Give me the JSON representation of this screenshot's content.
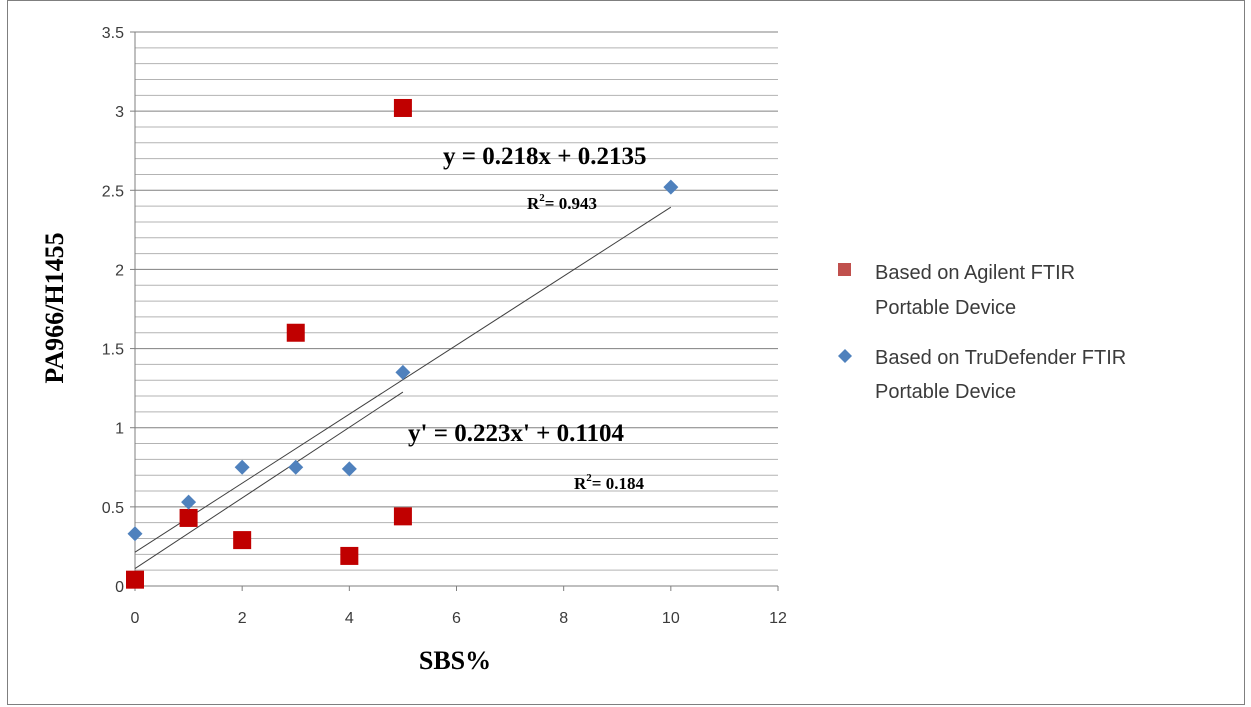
{
  "chart_data": {
    "type": "scatter",
    "xlabel": "SBS%",
    "ylabel": "PA966/H1455",
    "xlim": [
      0,
      12
    ],
    "ylim": [
      0,
      3.5
    ],
    "x_ticks": [
      0,
      2,
      4,
      6,
      8,
      10,
      12
    ],
    "y_ticks": [
      0,
      0.5,
      1,
      1.5,
      2,
      2.5,
      3,
      3.5
    ],
    "y_tick_labels": [
      "0",
      "0.5",
      "1",
      "1.5",
      "2",
      "2.5",
      "3",
      "3.5"
    ],
    "y_minor_step": 0.1,
    "grid": "horizontal",
    "legend_position": "right",
    "series": [
      {
        "name": "Based on Agilent FTIR Portable Device",
        "marker": "square",
        "color": "#c00000",
        "points": [
          {
            "x": 0,
            "y": 0.04
          },
          {
            "x": 1,
            "y": 0.43
          },
          {
            "x": 2,
            "y": 0.29
          },
          {
            "x": 3,
            "y": 1.6
          },
          {
            "x": 4,
            "y": 0.19
          },
          {
            "x": 5,
            "y": 0.44
          },
          {
            "x": 5,
            "y": 3.02
          }
        ],
        "trendline": {
          "x_start": 0,
          "x_end": 5,
          "slope": 0.223,
          "intercept": 0.1104
        },
        "equation": "y' = 0.223x' + 0.1104",
        "r2_prefix": "R",
        "r2_sup": "2",
        "r2_value": "= 0.184"
      },
      {
        "name": "Based on TruDefender FTIR Portable Device",
        "marker": "diamond",
        "color": "#4f81bd",
        "points": [
          {
            "x": 0,
            "y": 0.33
          },
          {
            "x": 1,
            "y": 0.53
          },
          {
            "x": 2,
            "y": 0.75
          },
          {
            "x": 3,
            "y": 0.75
          },
          {
            "x": 4,
            "y": 0.74
          },
          {
            "x": 5,
            "y": 1.35
          },
          {
            "x": 10,
            "y": 2.52
          }
        ],
        "trendline": {
          "x_start": 0,
          "x_end": 10,
          "slope": 0.218,
          "intercept": 0.2135
        },
        "equation": "y = 0.218x + 0.2135",
        "r2_prefix": "R",
        "r2_sup": "2",
        "r2_value": "= 0.943"
      }
    ],
    "legend": [
      {
        "label_line1": "Based on Agilent FTIR",
        "label_line2": "Portable Device"
      },
      {
        "label_line1": "Based on TruDefender FTIR",
        "label_line2": "Portable Device"
      }
    ]
  }
}
